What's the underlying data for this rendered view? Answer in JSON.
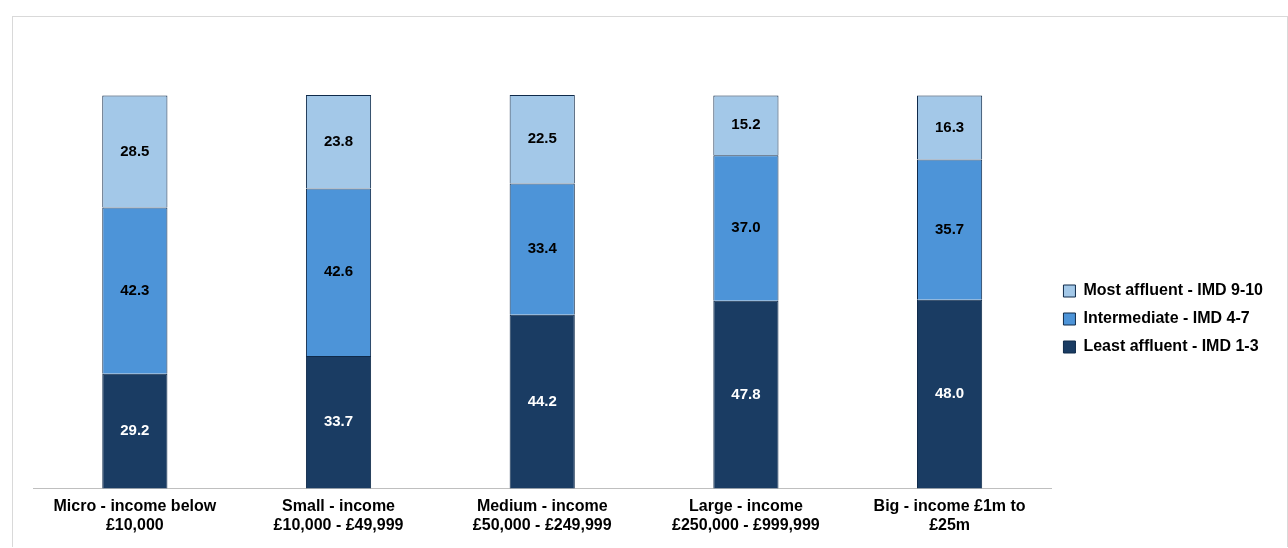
{
  "chart_data": {
    "type": "bar",
    "stacked": true,
    "legend": "right",
    "grid": false,
    "categories": [
      [
        "Micro - income below",
        "£10,000"
      ],
      [
        "Small - income",
        "£10,000 - £49,999"
      ],
      [
        "Medium - income",
        "£50,000 - £249,999"
      ],
      [
        "Large - income",
        "£250,000 - £999,999"
      ],
      [
        "Big - income £1m to",
        "£25m"
      ]
    ],
    "series": [
      {
        "name": "Least affluent - IMD 1-3",
        "color": "#1a3c63",
        "values": [
          29.2,
          33.7,
          44.2,
          47.8,
          48.0
        ],
        "value_labels": [
          "29.2",
          "33.7",
          "44.2",
          "47.8",
          "48.0"
        ]
      },
      {
        "name": "Intermediate - IMD 4-7",
        "color": "#4d94d8",
        "values": [
          42.3,
          42.6,
          33.4,
          37.0,
          35.7
        ],
        "value_labels": [
          "42.3",
          "42.6",
          "33.4",
          "37.0",
          "35.7"
        ]
      },
      {
        "name": "Most affluent - IMD 9-10",
        "color": "#a3c8e8",
        "values": [
          28.5,
          23.8,
          22.5,
          15.2,
          16.3
        ],
        "value_labels": [
          "28.5",
          "23.8",
          "22.5",
          "15.2",
          "16.3"
        ]
      }
    ]
  }
}
